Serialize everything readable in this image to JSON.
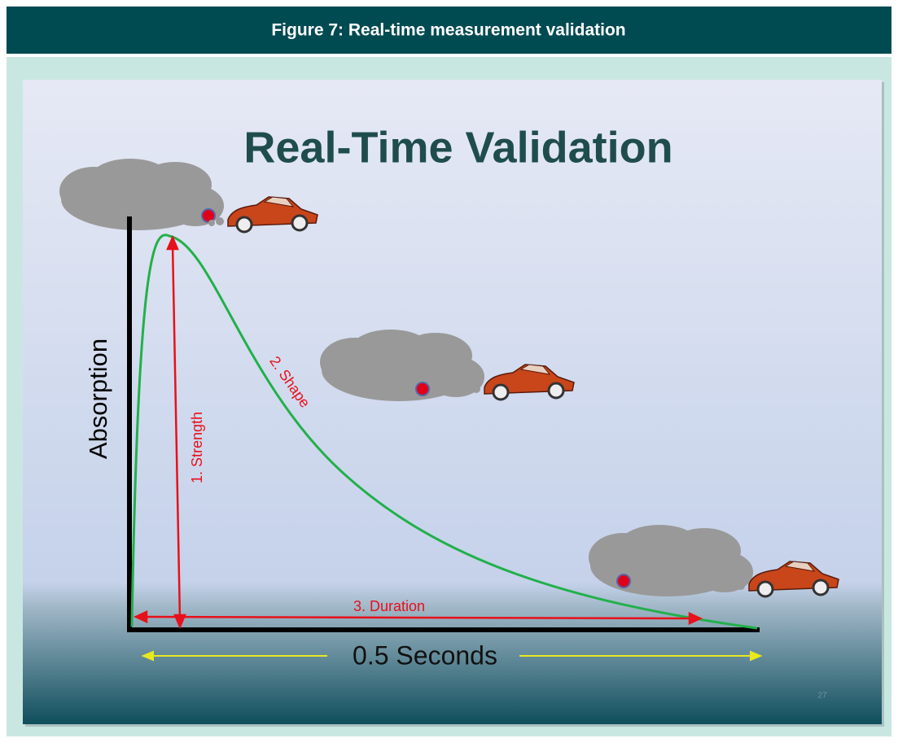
{
  "header": {
    "title": "Figure 7: Real-time measurement validation"
  },
  "slide": {
    "title": "Real-Time Validation",
    "y_axis_label": "Absorption",
    "x_axis_label": "0.5 Seconds",
    "annotations": [
      "1. Strength",
      "2. Shape",
      "3. Duration"
    ],
    "page_number": "27"
  }
}
